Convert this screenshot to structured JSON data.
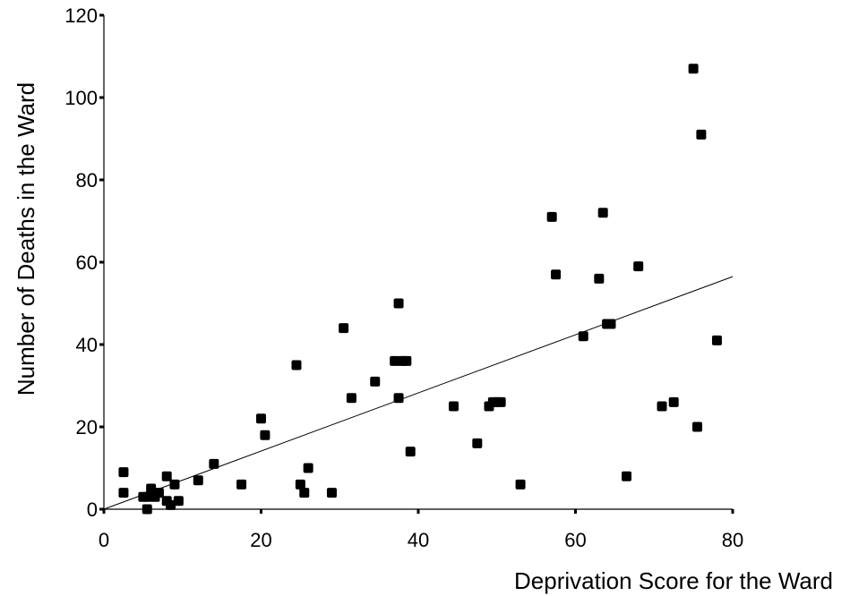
{
  "chart_data": {
    "type": "scatter",
    "title": "",
    "xlabel": "Deprivation Score for the Ward",
    "ylabel": "Number of Deaths in the Ward",
    "xlim": [
      0,
      80
    ],
    "ylim": [
      0,
      120
    ],
    "xticks": [
      "0",
      "20",
      "40",
      "60",
      "80"
    ],
    "yticks": [
      "0",
      "20",
      "40",
      "60",
      "80",
      "100",
      "120"
    ],
    "grid": false,
    "series": [
      {
        "points": [
          [
            2.5,
            9
          ],
          [
            2.5,
            4
          ],
          [
            5,
            3
          ],
          [
            5.5,
            0
          ],
          [
            5.5,
            3
          ],
          [
            6,
            5
          ],
          [
            6.5,
            3
          ],
          [
            7,
            4
          ],
          [
            8,
            8
          ],
          [
            8,
            2
          ],
          [
            8.5,
            1
          ],
          [
            9,
            6
          ],
          [
            9.5,
            2
          ],
          [
            12,
            7
          ],
          [
            14,
            11
          ],
          [
            17.5,
            6
          ],
          [
            20,
            22
          ],
          [
            20.5,
            18
          ],
          [
            24.5,
            35
          ],
          [
            25,
            6
          ],
          [
            25.5,
            4
          ],
          [
            26,
            10
          ],
          [
            29,
            4
          ],
          [
            30.5,
            44
          ],
          [
            31.5,
            27
          ],
          [
            34.5,
            31
          ],
          [
            37,
            36
          ],
          [
            37.5,
            50
          ],
          [
            37.5,
            27
          ],
          [
            38,
            36
          ],
          [
            38.5,
            36
          ],
          [
            39,
            14
          ],
          [
            44.5,
            25
          ],
          [
            47.5,
            16
          ],
          [
            49,
            25
          ],
          [
            49.5,
            26
          ],
          [
            50,
            26
          ],
          [
            50.5,
            26
          ],
          [
            53,
            6
          ],
          [
            57,
            71
          ],
          [
            57.5,
            57
          ],
          [
            61,
            42
          ],
          [
            63,
            56
          ],
          [
            63.5,
            72
          ],
          [
            64,
            45
          ],
          [
            64.5,
            45
          ],
          [
            66.5,
            8
          ],
          [
            68,
            59
          ],
          [
            71,
            25
          ],
          [
            72.5,
            26
          ],
          [
            75,
            107
          ],
          [
            75.5,
            20
          ],
          [
            76,
            91
          ],
          [
            78,
            41
          ]
        ]
      }
    ],
    "trendline": {
      "x": [
        0,
        80
      ],
      "y": [
        0,
        56.5
      ]
    }
  }
}
